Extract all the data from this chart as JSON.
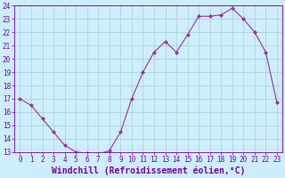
{
  "x": [
    0,
    1,
    2,
    3,
    4,
    5,
    6,
    7,
    8,
    9,
    10,
    11,
    12,
    13,
    14,
    15,
    16,
    17,
    18,
    19,
    20,
    21,
    22,
    23
  ],
  "y": [
    17.0,
    16.5,
    15.5,
    14.5,
    13.5,
    13.0,
    12.9,
    12.85,
    13.1,
    14.5,
    17.0,
    19.0,
    20.5,
    21.3,
    20.5,
    21.8,
    23.2,
    23.2,
    23.3,
    23.8,
    23.0,
    22.0,
    20.5,
    16.7
  ],
  "line_color": "#993399",
  "marker": "D",
  "marker_size": 2.0,
  "bg_color": "#cceeff",
  "grid_color": "#aacccc",
  "xlabel": "Windchill (Refroidissement éolien,°C)",
  "ylabel": "",
  "ylim": [
    13,
    24
  ],
  "xlim": [
    -0.5,
    23.5
  ],
  "yticks": [
    13,
    14,
    15,
    16,
    17,
    18,
    19,
    20,
    21,
    22,
    23,
    24
  ],
  "xticks": [
    0,
    1,
    2,
    3,
    4,
    5,
    6,
    7,
    8,
    9,
    10,
    11,
    12,
    13,
    14,
    15,
    16,
    17,
    18,
    19,
    20,
    21,
    22,
    23
  ],
  "tick_color": "#7700aa",
  "tick_fontsize": 5.5,
  "xlabel_fontsize": 7.0,
  "spine_color": "#7700aa"
}
